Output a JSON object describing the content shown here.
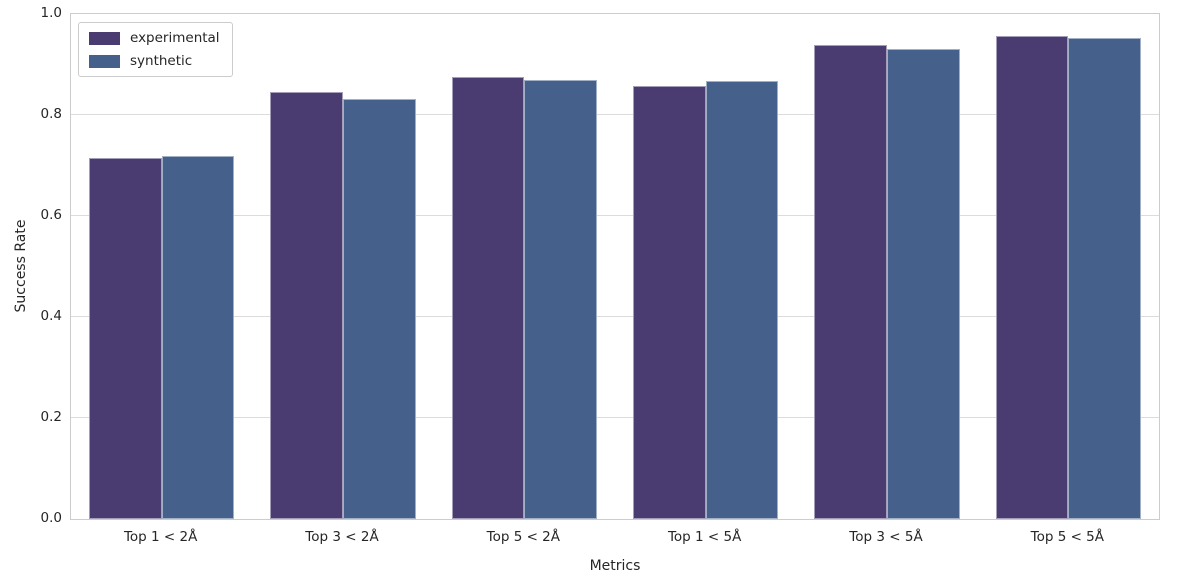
{
  "chart_data": {
    "type": "bar",
    "title": "",
    "xlabel": "Metrics",
    "ylabel": "Success Rate",
    "categories": [
      "Top 1 < 2Å",
      "Top 3 < 2Å",
      "Top 5 < 2Å",
      "Top 1 < 5Å",
      "Top 3 < 5Å",
      "Top 5 < 5Å"
    ],
    "series": [
      {
        "name": "experimental",
        "color": "#4a3c71",
        "values": [
          0.715,
          0.846,
          0.875,
          0.858,
          0.939,
          0.957
        ]
      },
      {
        "name": "synthetic",
        "color": "#45618b",
        "values": [
          0.718,
          0.832,
          0.87,
          0.868,
          0.931,
          0.953
        ]
      }
    ],
    "ylim": [
      0.0,
      1.0
    ],
    "yticks": [
      0.0,
      0.2,
      0.4,
      0.6,
      0.8,
      1.0
    ],
    "grid": true,
    "legend_position": "upper left",
    "colors": {
      "experimental": "#4a3c71",
      "synthetic": "#45618b",
      "gridline": "#dcdcdc",
      "frame": "#cccccc",
      "text": "#262626"
    }
  }
}
